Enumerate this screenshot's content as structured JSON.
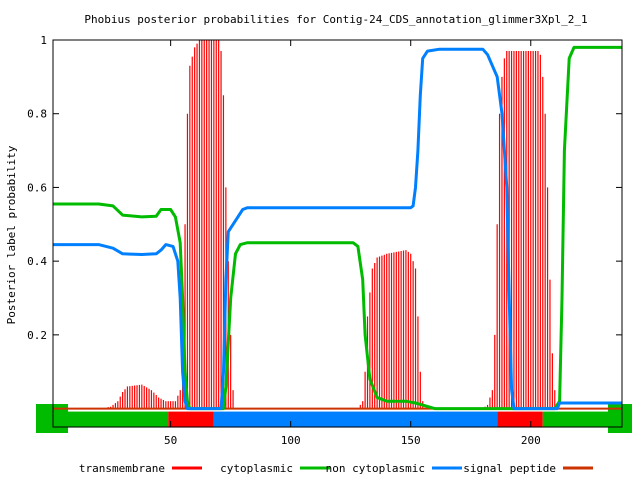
{
  "chart_data": {
    "type": "line",
    "title": "Phobius posterior probabilities for Contig-24_CDS_annotation_glimmer3Xpl_2_1",
    "ylabel": "Posterior label probability",
    "xlabel": "",
    "xlim": [
      1,
      238
    ],
    "ylim": [
      -0.05,
      1.0
    ],
    "x_ticks": [
      50,
      100,
      150,
      200
    ],
    "y_ticks": [
      0.2,
      0.4,
      0.6,
      0.8,
      1
    ],
    "y_tick_labels": [
      "0.2",
      "0.4",
      "0.6",
      "0.8",
      "1"
    ],
    "grid": false,
    "legend_position": "bottom",
    "legend": [
      {
        "name": "transmembrane",
        "color": "#ff0000"
      },
      {
        "name": "cytoplasmic",
        "color": "#00bb00"
      },
      {
        "name": "non cytoplasmic",
        "color": "#0080ff"
      },
      {
        "name": "signal peptide",
        "color": "#cc3300"
      }
    ],
    "series": [
      {
        "name": "transmembrane",
        "color": "#ff0000",
        "style": "impulses",
        "points": [
          [
            1,
            0.0
          ],
          [
            20,
            0.0
          ],
          [
            25,
            0.005
          ],
          [
            28,
            0.02
          ],
          [
            30,
            0.045
          ],
          [
            32,
            0.06
          ],
          [
            38,
            0.065
          ],
          [
            42,
            0.05
          ],
          [
            45,
            0.03
          ],
          [
            48,
            0.02
          ],
          [
            52,
            0.02
          ],
          [
            54,
            0.05
          ],
          [
            55,
            0.2
          ],
          [
            56,
            0.5
          ],
          [
            57,
            0.8
          ],
          [
            58,
            0.93
          ],
          [
            60,
            0.98
          ],
          [
            62,
            1.0
          ],
          [
            70,
            1.0
          ],
          [
            71,
            0.97
          ],
          [
            72,
            0.85
          ],
          [
            73,
            0.6
          ],
          [
            74,
            0.4
          ],
          [
            75,
            0.2
          ],
          [
            76,
            0.05
          ],
          [
            77,
            0.0
          ],
          [
            128,
            0.0
          ],
          [
            130,
            0.02
          ],
          [
            131,
            0.1
          ],
          [
            132,
            0.25
          ],
          [
            134,
            0.38
          ],
          [
            136,
            0.41
          ],
          [
            140,
            0.42
          ],
          [
            148,
            0.43
          ],
          [
            150,
            0.42
          ],
          [
            152,
            0.38
          ],
          [
            153,
            0.25
          ],
          [
            154,
            0.1
          ],
          [
            155,
            0.02
          ],
          [
            156,
            0.0
          ],
          [
            180,
            0.0
          ],
          [
            182,
            0.01
          ],
          [
            184,
            0.05
          ],
          [
            185,
            0.2
          ],
          [
            186,
            0.5
          ],
          [
            187,
            0.8
          ],
          [
            188,
            0.9
          ],
          [
            189,
            0.95
          ],
          [
            190,
            0.97
          ],
          [
            203,
            0.97
          ],
          [
            204,
            0.96
          ],
          [
            205,
            0.9
          ],
          [
            206,
            0.8
          ],
          [
            207,
            0.6
          ],
          [
            208,
            0.35
          ],
          [
            209,
            0.15
          ],
          [
            210,
            0.05
          ],
          [
            211,
            0.0
          ],
          [
            238,
            0.0
          ]
        ]
      },
      {
        "name": "cytoplasmic",
        "color": "#00bb00",
        "style": "line",
        "points": [
          [
            1,
            0.555
          ],
          [
            20,
            0.555
          ],
          [
            26,
            0.55
          ],
          [
            30,
            0.525
          ],
          [
            38,
            0.52
          ],
          [
            44,
            0.522
          ],
          [
            46,
            0.54
          ],
          [
            50,
            0.54
          ],
          [
            52,
            0.52
          ],
          [
            54,
            0.45
          ],
          [
            55,
            0.3
          ],
          [
            56,
            0.1
          ],
          [
            57,
            0.02
          ],
          [
            58,
            0.0
          ],
          [
            72,
            0.0
          ],
          [
            73,
            0.06
          ],
          [
            75,
            0.3
          ],
          [
            77,
            0.42
          ],
          [
            79,
            0.445
          ],
          [
            82,
            0.45
          ],
          [
            126,
            0.45
          ],
          [
            128,
            0.44
          ],
          [
            130,
            0.35
          ],
          [
            131,
            0.2
          ],
          [
            133,
            0.08
          ],
          [
            136,
            0.03
          ],
          [
            140,
            0.02
          ],
          [
            148,
            0.02
          ],
          [
            152,
            0.015
          ],
          [
            160,
            0.0
          ],
          [
            180,
            0.0
          ],
          [
            200,
            0.0
          ],
          [
            210,
            0.0
          ],
          [
            212,
            0.02
          ],
          [
            213,
            0.3
          ],
          [
            214,
            0.7
          ],
          [
            216,
            0.95
          ],
          [
            218,
            0.98
          ],
          [
            238,
            0.98
          ]
        ]
      },
      {
        "name": "non cytoplasmic",
        "color": "#0080ff",
        "style": "line",
        "points": [
          [
            1,
            0.445
          ],
          [
            20,
            0.445
          ],
          [
            26,
            0.435
          ],
          [
            30,
            0.42
          ],
          [
            38,
            0.418
          ],
          [
            44,
            0.42
          ],
          [
            46,
            0.43
          ],
          [
            48,
            0.445
          ],
          [
            51,
            0.44
          ],
          [
            53,
            0.4
          ],
          [
            54,
            0.3
          ],
          [
            55,
            0.1
          ],
          [
            56,
            0.02
          ],
          [
            57,
            0.0
          ],
          [
            71,
            0.0
          ],
          [
            72,
            0.1
          ],
          [
            73,
            0.35
          ],
          [
            74,
            0.48
          ],
          [
            76,
            0.5
          ],
          [
            78,
            0.52
          ],
          [
            80,
            0.54
          ],
          [
            82,
            0.545
          ],
          [
            140,
            0.545
          ],
          [
            150,
            0.545
          ],
          [
            151,
            0.55
          ],
          [
            152,
            0.6
          ],
          [
            153,
            0.7
          ],
          [
            154,
            0.85
          ],
          [
            155,
            0.95
          ],
          [
            157,
            0.97
          ],
          [
            162,
            0.975
          ],
          [
            175,
            0.975
          ],
          [
            180,
            0.975
          ],
          [
            182,
            0.96
          ],
          [
            184,
            0.93
          ],
          [
            186,
            0.9
          ],
          [
            188,
            0.8
          ],
          [
            190,
            0.6
          ],
          [
            191,
            0.3
          ],
          [
            192,
            0.05
          ],
          [
            193,
            0.0
          ],
          [
            211,
            0.0
          ],
          [
            212,
            0.015
          ],
          [
            238,
            0.015
          ]
        ]
      },
      {
        "name": "signal peptide",
        "color": "#cc3300",
        "style": "line",
        "points": [
          [
            1,
            0.0
          ],
          [
            238,
            0.0
          ]
        ]
      }
    ],
    "topology_bar": [
      {
        "label": "cytoplasmic",
        "start": 1,
        "end": 49,
        "color": "#00bb00"
      },
      {
        "label": "transmembrane",
        "start": 49,
        "end": 68,
        "color": "#ff0000"
      },
      {
        "label": "non cytoplasmic",
        "start": 68,
        "end": 186,
        "color": "#0080ff"
      },
      {
        "label": "transmembrane",
        "start": 186,
        "end": 205,
        "color": "#ff0000"
      },
      {
        "label": "cytoplasmic",
        "start": 205,
        "end": 238,
        "color": "#00bb00"
      }
    ]
  }
}
